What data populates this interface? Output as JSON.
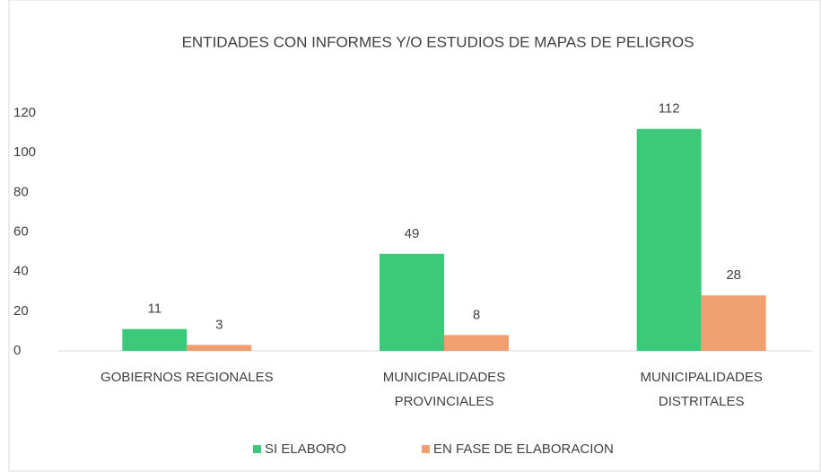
{
  "chart_data": {
    "type": "bar",
    "title": "ENTIDADES CON INFORMES Y/O ESTUDIOS DE MAPAS DE PELIGROS",
    "categories": [
      [
        "GOBIERNOS REGIONALES"
      ],
      [
        "MUNICIPALIDADES",
        "PROVINCIALES"
      ],
      [
        "MUNICIPALIDADES",
        "DISTRITALES"
      ]
    ],
    "series": [
      {
        "name": "SI ELABORO",
        "color": "#3dc97a",
        "values": [
          11,
          49,
          112
        ]
      },
      {
        "name": "EN FASE DE ELABORACION",
        "color": "#f0a06e",
        "values": [
          3,
          8,
          28
        ]
      }
    ],
    "ylim": [
      0,
      120
    ],
    "yticks": [
      0,
      20,
      40,
      60,
      80,
      100,
      120
    ],
    "grid": false,
    "legend": "bottom"
  }
}
